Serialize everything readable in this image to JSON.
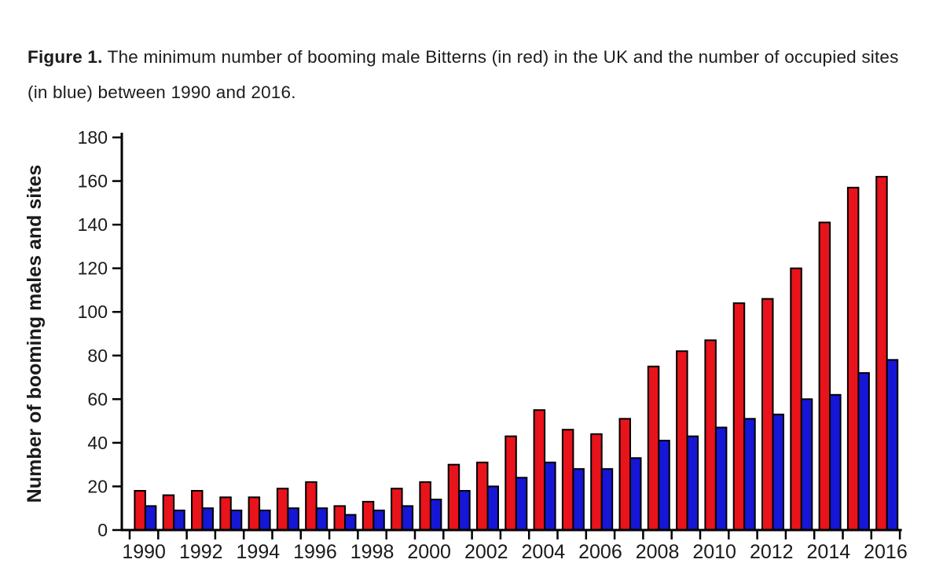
{
  "figure": {
    "caption_bold": "Figure 1.",
    "caption_rest": " The minimum number of booming male Bitterns (in red) in the UK and the number of occupied sites (in blue) between 1990 and 2016."
  },
  "chart_data": {
    "type": "bar",
    "title": "",
    "xlabel": "",
    "ylabel": "Number of booming males and sites",
    "categories": [
      1990,
      1991,
      1992,
      1993,
      1994,
      1995,
      1996,
      1997,
      1998,
      1999,
      2000,
      2001,
      2002,
      2003,
      2004,
      2005,
      2006,
      2007,
      2008,
      2009,
      2010,
      2011,
      2012,
      2013,
      2014,
      2015,
      2016
    ],
    "series": [
      {
        "name": "Booming male Bitterns",
        "color": "#E8131B",
        "values": [
          18,
          16,
          18,
          15,
          15,
          19,
          22,
          11,
          13,
          19,
          22,
          30,
          31,
          43,
          55,
          46,
          44,
          51,
          75,
          82,
          87,
          104,
          106,
          120,
          141,
          157,
          162
        ]
      },
      {
        "name": "Occupied sites",
        "color": "#1616D6",
        "values": [
          11,
          9,
          10,
          9,
          9,
          10,
          10,
          7,
          9,
          11,
          14,
          18,
          20,
          24,
          31,
          28,
          28,
          33,
          41,
          43,
          47,
          51,
          53,
          60,
          62,
          72,
          78
        ]
      }
    ],
    "ylim": [
      0,
      180
    ],
    "ytick_step": 20,
    "ytick_labels": [
      "0",
      "20",
      "40",
      "60",
      "80",
      "100",
      "120",
      "140",
      "160",
      "180"
    ],
    "xtick_labels": [
      "1990",
      "1992",
      "1994",
      "1996",
      "1998",
      "2000",
      "2002",
      "2004",
      "2006",
      "2008",
      "2010",
      "2012",
      "2014",
      "2016"
    ],
    "xtick_label_every": 2,
    "grid": false,
    "legend_position": "none",
    "bar_outline_color": "#000000"
  },
  "colors": {
    "background": "#ffffff",
    "axis": "#000000",
    "text": "#1a1a1a"
  }
}
